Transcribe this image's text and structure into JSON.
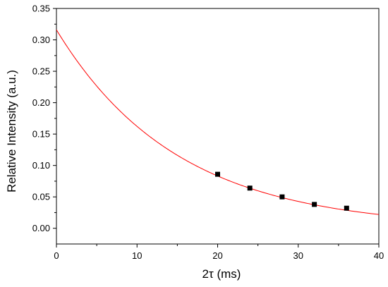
{
  "chart_data": {
    "type": "scatter",
    "xlabel": "2τ (ms)",
    "ylabel": "Relative Intensity (a.u.)",
    "xlim": [
      0,
      40
    ],
    "ylim": [
      -0.025,
      0.35
    ],
    "x_ticks": [
      0,
      10,
      20,
      30,
      40
    ],
    "y_ticks": [
      0.0,
      0.05,
      0.1,
      0.15,
      0.2,
      0.25,
      0.3,
      0.35
    ],
    "y_tick_labels": [
      "0.00",
      "0.05",
      "0.10",
      "0.15",
      "0.20",
      "0.25",
      "0.30",
      "0.35"
    ],
    "x_tick_labels": [
      "0",
      "10",
      "20",
      "30",
      "40"
    ],
    "grid": false,
    "series": [
      {
        "kind": "points",
        "marker": "square",
        "color": "#000000",
        "x": [
          20,
          24,
          28,
          32,
          36
        ],
        "y": [
          0.086,
          0.064,
          0.05,
          0.038,
          0.032
        ]
      },
      {
        "kind": "fit-curve",
        "function": "exponential decay",
        "color": "#ff0000",
        "x_range": [
          0,
          40
        ],
        "amplitude": 0.316,
        "decay_constant_ms": 15.0
      }
    ]
  }
}
